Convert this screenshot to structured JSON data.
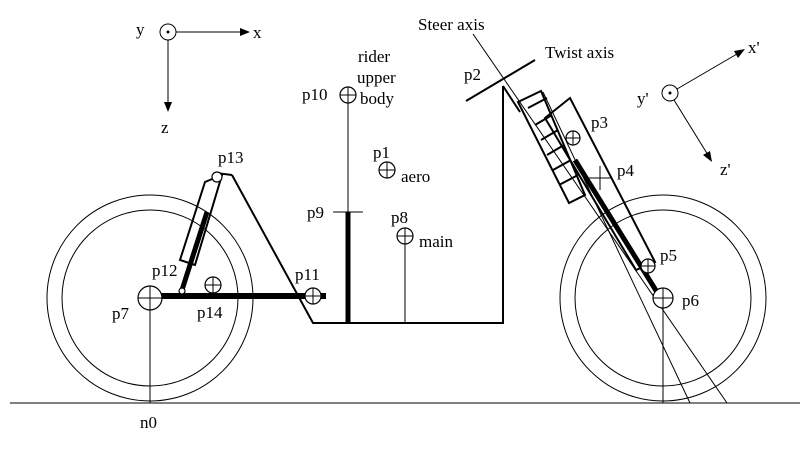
{
  "frames": {
    "global": {
      "x": "x",
      "y": "y",
      "z": "z"
    },
    "steer": {
      "x": "x'",
      "y": "y'",
      "z": "z'"
    }
  },
  "axes": {
    "steer": "Steer axis",
    "twist": "Twist axis"
  },
  "points": {
    "p1": "p1",
    "p2": "p2",
    "p3": "p3",
    "p4": "p4",
    "p5": "p5",
    "p6": "p6",
    "p7": "p7",
    "p8": "p8",
    "p9": "p9",
    "p10": "p10",
    "p11": "p11",
    "p12": "p12",
    "p13": "p13",
    "p14": "p14"
  },
  "bodies": {
    "aero": "aero",
    "main": "main",
    "rider_line1": "rider",
    "rider_line2": "upper",
    "rider_line3": "body"
  },
  "ground_point": "n0"
}
